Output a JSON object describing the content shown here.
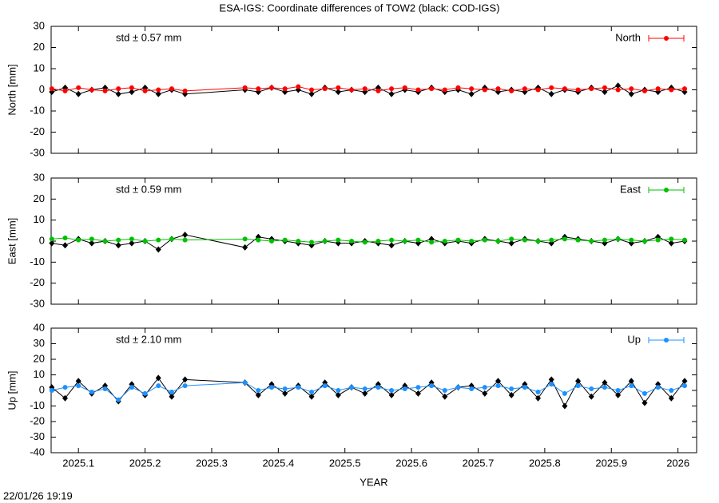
{
  "title": "ESA-IGS: Coordinate differences of TOW2 (black: COD-IGS)",
  "timestamp": "22/01/26 19:19",
  "chart_data": [
    {
      "type": "line",
      "ylabel": "North [mm]",
      "annotation": "std ± 0.57 mm",
      "xlim": [
        2025.059,
        2026.028
      ],
      "xticks": [
        2025.1,
        2025.2,
        2025.3,
        2025.4,
        2025.5,
        2025.6,
        2025.7,
        2025.8,
        2025.9,
        2026
      ],
      "ylim": [
        -30,
        30
      ],
      "yticks": [
        -30,
        -20,
        -10,
        0,
        10,
        20,
        30
      ],
      "legend": "top-right",
      "x": [
        2025.06,
        2025.08,
        2025.1,
        2025.12,
        2025.14,
        2025.16,
        2025.18,
        2025.2,
        2025.22,
        2025.24,
        2025.26,
        2025.35,
        2025.37,
        2025.39,
        2025.41,
        2025.43,
        2025.45,
        2025.47,
        2025.49,
        2025.51,
        2025.53,
        2025.55,
        2025.57,
        2025.59,
        2025.61,
        2025.63,
        2025.65,
        2025.67,
        2025.69,
        2025.71,
        2025.73,
        2025.75,
        2025.77,
        2025.79,
        2025.81,
        2025.83,
        2025.85,
        2025.87,
        2025.89,
        2025.91,
        2025.93,
        2025.95,
        2025.97,
        2025.99,
        2026.01
      ],
      "series": [
        {
          "color": "#000000",
          "values": [
            -1,
            1,
            -2,
            0,
            1,
            -2,
            -1,
            1,
            -2,
            0,
            -2,
            0,
            -1,
            1,
            -1,
            0,
            -2,
            1,
            -1,
            0,
            -1,
            1,
            -2,
            0,
            -1,
            1,
            -1,
            0,
            -2,
            1,
            -1,
            0,
            -1,
            1,
            -2,
            0,
            -1,
            1,
            -1,
            2,
            -2,
            0,
            -1,
            1,
            -1
          ]
        },
        {
          "name": "North",
          "color": "#ff0000",
          "values": [
            0.5,
            -0.5,
            1,
            0,
            -0.5,
            0.5,
            1,
            -0.5,
            0,
            0.5,
            -0.5,
            1,
            0.5,
            1,
            0.5,
            1.5,
            0,
            0.5,
            1,
            0,
            0.5,
            -0.5,
            0.5,
            1,
            0,
            0.5,
            0,
            1,
            0.5,
            0,
            0.5,
            -0.5,
            0.5,
            0,
            1,
            0.5,
            0,
            0.5,
            1,
            0,
            0.5,
            -0.5,
            0.5,
            0,
            0.5
          ]
        }
      ]
    },
    {
      "type": "line",
      "ylabel": "East [mm]",
      "annotation": "std ± 0.59 mm",
      "xlim": [
        2025.059,
        2026.028
      ],
      "xticks": [
        2025.1,
        2025.2,
        2025.3,
        2025.4,
        2025.5,
        2025.6,
        2025.7,
        2025.8,
        2025.9,
        2026
      ],
      "ylim": [
        -30,
        30
      ],
      "yticks": [
        -30,
        -20,
        -10,
        0,
        10,
        20,
        30
      ],
      "legend": "top-right",
      "x": [
        2025.06,
        2025.08,
        2025.1,
        2025.12,
        2025.14,
        2025.16,
        2025.18,
        2025.2,
        2025.22,
        2025.24,
        2025.26,
        2025.35,
        2025.37,
        2025.39,
        2025.41,
        2025.43,
        2025.45,
        2025.47,
        2025.49,
        2025.51,
        2025.53,
        2025.55,
        2025.57,
        2025.59,
        2025.61,
        2025.63,
        2025.65,
        2025.67,
        2025.69,
        2025.71,
        2025.73,
        2025.75,
        2025.77,
        2025.79,
        2025.81,
        2025.83,
        2025.85,
        2025.87,
        2025.89,
        2025.91,
        2025.93,
        2025.95,
        2025.97,
        2025.99,
        2026.01
      ],
      "series": [
        {
          "color": "#000000",
          "values": [
            -1,
            -2,
            1,
            -1,
            0,
            -2,
            -1,
            0,
            -4,
            1,
            3,
            -3,
            2,
            1,
            0,
            -1,
            -2,
            0,
            -1,
            -1,
            0,
            -1,
            -2,
            0,
            -1,
            1,
            -1,
            0,
            -1,
            1,
            0,
            -1,
            1,
            0,
            -1,
            2,
            1,
            0,
            -1,
            1,
            -1,
            0,
            2,
            -1,
            0
          ]
        },
        {
          "name": "East",
          "color": "#00c000",
          "values": [
            1,
            1.5,
            0.5,
            1,
            0,
            0.5,
            1,
            0,
            0.5,
            1,
            0.5,
            1,
            0.5,
            0,
            0.5,
            0,
            -0.5,
            0,
            0.5,
            0,
            -0.5,
            0,
            0.5,
            0,
            0.5,
            -0.5,
            0,
            0.5,
            0,
            0.5,
            0,
            1,
            0.5,
            0,
            0.5,
            1,
            0.5,
            0,
            0.5,
            1,
            0.5,
            0,
            0.5,
            1,
            0.5
          ]
        }
      ]
    },
    {
      "type": "line",
      "ylabel": "Up [mm]",
      "annotation": "std ± 2.10 mm",
      "xlabel": "YEAR",
      "xlim": [
        2025.059,
        2026.028
      ],
      "xticks": [
        2025.1,
        2025.2,
        2025.3,
        2025.4,
        2025.5,
        2025.6,
        2025.7,
        2025.8,
        2025.9,
        2026
      ],
      "ylim": [
        -40,
        40
      ],
      "yticks": [
        -40,
        -30,
        -20,
        -10,
        0,
        10,
        20,
        30,
        40
      ],
      "legend": "top-right",
      "x": [
        2025.06,
        2025.08,
        2025.1,
        2025.12,
        2025.14,
        2025.16,
        2025.18,
        2025.2,
        2025.22,
        2025.24,
        2025.26,
        2025.35,
        2025.37,
        2025.39,
        2025.41,
        2025.43,
        2025.45,
        2025.47,
        2025.49,
        2025.51,
        2025.53,
        2025.55,
        2025.57,
        2025.59,
        2025.61,
        2025.63,
        2025.65,
        2025.67,
        2025.69,
        2025.71,
        2025.73,
        2025.75,
        2025.77,
        2025.79,
        2025.81,
        2025.83,
        2025.85,
        2025.87,
        2025.89,
        2025.91,
        2025.93,
        2025.95,
        2025.97,
        2025.99,
        2026.01
      ],
      "series": [
        {
          "color": "#000000",
          "values": [
            2,
            -5,
            6,
            -2,
            3,
            -7,
            4,
            -3,
            8,
            -4,
            7,
            5,
            -3,
            4,
            -2,
            3,
            -4,
            5,
            -3,
            2,
            -2,
            4,
            -3,
            3,
            -2,
            5,
            -4,
            2,
            3,
            -2,
            6,
            -3,
            4,
            -5,
            7,
            -10,
            6,
            -4,
            5,
            -3,
            6,
            -8,
            4,
            -5,
            6
          ]
        },
        {
          "name": "Up",
          "color": "#1e90ff",
          "values": [
            0,
            2,
            3,
            -1,
            1,
            -6,
            2,
            -2,
            3,
            -1,
            3,
            5,
            0,
            2,
            1,
            2,
            -1,
            3,
            0,
            2,
            1,
            2,
            0,
            1,
            2,
            3,
            0,
            2,
            1,
            2,
            3,
            1,
            2,
            -1,
            4,
            -2,
            3,
            1,
            2,
            0,
            3,
            -2,
            2,
            0,
            3
          ]
        }
      ]
    }
  ]
}
